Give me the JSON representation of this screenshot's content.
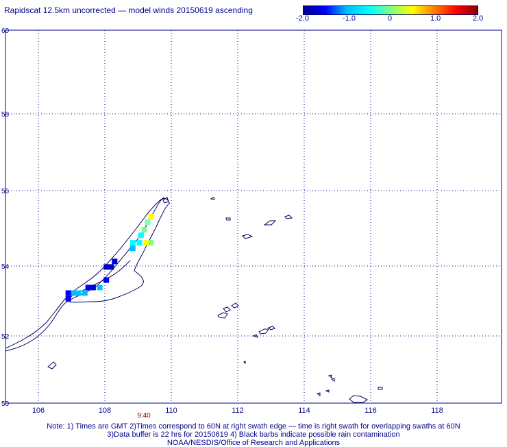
{
  "title": "Rapidscat 12.5km uncorrected — model winds 20150619 ascending",
  "colorbar": {
    "ticks": [
      "-2.0",
      "-1.0",
      "0",
      "1.0",
      "2.0"
    ],
    "stops": [
      "#00008b",
      "#0000ff",
      "#00bfff",
      "#00ffff",
      "#7fff7f",
      "#ffff00",
      "#ff7f00",
      "#ff0000",
      "#8b0000"
    ]
  },
  "map": {
    "lat_range": [
      50,
      60
    ],
    "lon_range": [
      105,
      120
    ],
    "lat_labels": [
      "60",
      "58",
      "56",
      "54",
      "52",
      "50"
    ],
    "lon_labels": [
      "106",
      "108",
      "110",
      "112",
      "114",
      "116",
      "118"
    ],
    "time_label": "9:40"
  },
  "wind_cells": [
    {
      "lon": 109.4,
      "lat": 55.0,
      "color": "#ffff00"
    },
    {
      "lon": 109.3,
      "lat": 54.85,
      "color": "#7fffbf"
    },
    {
      "lon": 109.2,
      "lat": 54.65,
      "color": "#7fff7f"
    },
    {
      "lon": 109.1,
      "lat": 54.5,
      "color": "#00ffff"
    },
    {
      "lon": 109.4,
      "lat": 54.3,
      "color": "#7fff7f"
    },
    {
      "lon": 109.25,
      "lat": 54.3,
      "color": "#ffff00"
    },
    {
      "lon": 109.05,
      "lat": 54.3,
      "color": "#00ffff"
    },
    {
      "lon": 108.85,
      "lat": 54.3,
      "color": "#00ffff"
    },
    {
      "lon": 108.85,
      "lat": 54.15,
      "color": "#00bfff"
    },
    {
      "lon": 108.3,
      "lat": 53.8,
      "color": "#0000cd"
    },
    {
      "lon": 108.2,
      "lat": 53.65,
      "color": "#0000cd"
    },
    {
      "lon": 108.05,
      "lat": 53.65,
      "color": "#0000cd"
    },
    {
      "lon": 108.05,
      "lat": 53.3,
      "color": "#0000ff"
    },
    {
      "lon": 107.85,
      "lat": 53.1,
      "color": "#00bfff"
    },
    {
      "lon": 107.65,
      "lat": 53.1,
      "color": "#0000cd"
    },
    {
      "lon": 107.5,
      "lat": 53.1,
      "color": "#0000ff"
    },
    {
      "lon": 107.4,
      "lat": 52.95,
      "color": "#00bfff"
    },
    {
      "lon": 107.2,
      "lat": 52.95,
      "color": "#00bfff"
    },
    {
      "lon": 107.05,
      "lat": 52.95,
      "color": "#00bfff"
    },
    {
      "lon": 106.9,
      "lat": 52.95,
      "color": "#0000ff"
    },
    {
      "lon": 106.9,
      "lat": 52.8,
      "color": "#0000ff"
    }
  ],
  "notes": {
    "line1": "Note: 1) Times are GMT 2)Times correspond to 60N at right swath edge — time is right swath for overlapping swaths at 60N",
    "line2": "3)Data buffer is 22 hrs for 20150619 4) Black barbs indicate possible rain contamination",
    "line3": "NOAA/NESDIS/Office of Research and Applications"
  }
}
